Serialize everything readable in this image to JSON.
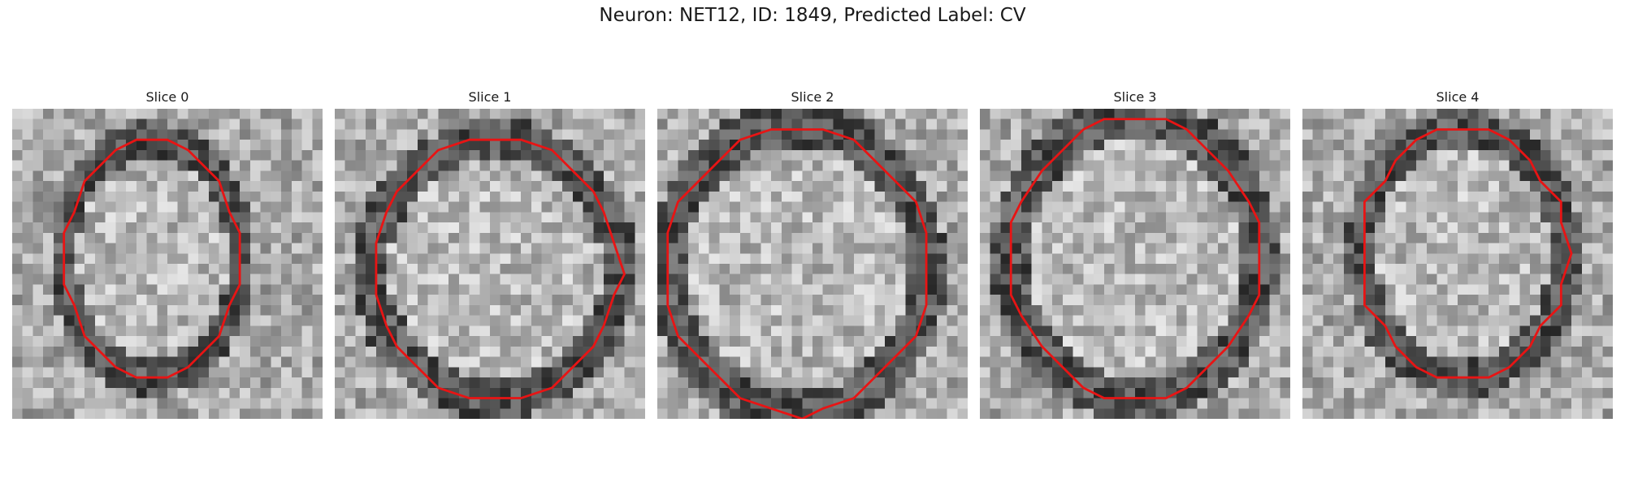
{
  "figure": {
    "title": "Neuron: NET12, ID: 1849, Predicted Label: CV",
    "contour_color": "#e81414"
  },
  "panels": [
    {
      "title": "Slice 0"
    },
    {
      "title": "Slice 1"
    },
    {
      "title": "Slice 2"
    },
    {
      "title": "Slice 3"
    },
    {
      "title": "Slice 4"
    }
  ]
}
